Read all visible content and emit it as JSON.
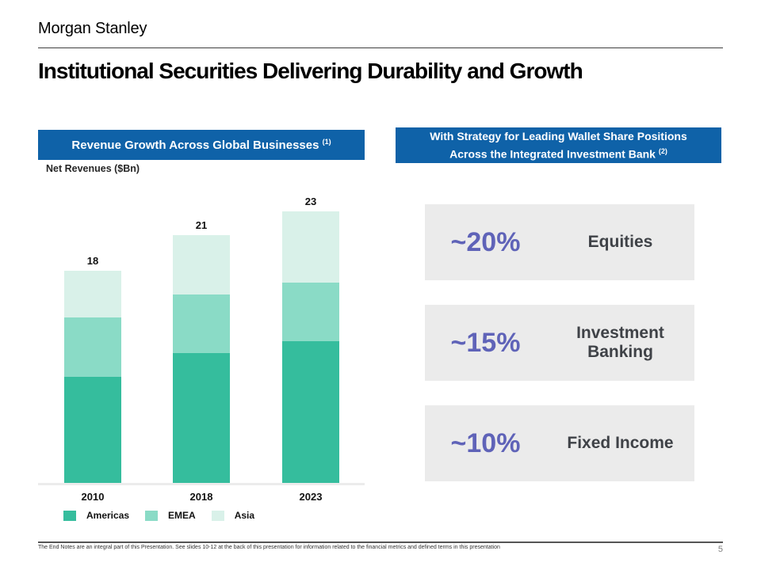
{
  "header": {
    "logo": "Morgan Stanley",
    "title": "Institutional Securities Delivering Durability and Growth"
  },
  "left_panel": {
    "banner": "Revenue Growth Across Global Businesses",
    "banner_note": "(1)",
    "axis_label": "Net Revenues ($Bn)"
  },
  "right_panel": {
    "banner_line1": "With Strategy for Leading Wallet Share Positions",
    "banner_line2": "Across the Integrated Investment Bank",
    "banner_note": "(2)",
    "cards": [
      {
        "percent": "~20%",
        "label": "Equities"
      },
      {
        "percent": "~15%",
        "label": "Investment Banking"
      },
      {
        "percent": "~10%",
        "label": "Fixed Income"
      }
    ]
  },
  "chart_data": {
    "type": "bar",
    "stacked": true,
    "title": "Revenue Growth Across Global Businesses (1)",
    "ylabel": "Net Revenues ($Bn)",
    "categories": [
      "2010",
      "2018",
      "2023"
    ],
    "series": [
      {
        "name": "Americas",
        "color": "#35bd9d",
        "values": [
          9,
          11,
          12
        ]
      },
      {
        "name": "EMEA",
        "color": "#8adbc6",
        "values": [
          5,
          5,
          5
        ]
      },
      {
        "name": "Asia",
        "color": "#d9f1e9",
        "values": [
          4,
          5,
          6
        ]
      }
    ],
    "totals": [
      18,
      21,
      23
    ],
    "ylim": [
      0,
      25
    ],
    "grid": false,
    "legend_position": "bottom"
  },
  "colors": {
    "banner_blue": "#0f62a8",
    "card_bg": "#ebebeb",
    "percent_purple": "#5f63b8"
  },
  "footer": {
    "note": "The End Notes are an integral part of this Presentation. See slides 10-12 at the back of this presentation for information related to the financial metrics and defined terms in this presentation",
    "page_number": "5"
  }
}
